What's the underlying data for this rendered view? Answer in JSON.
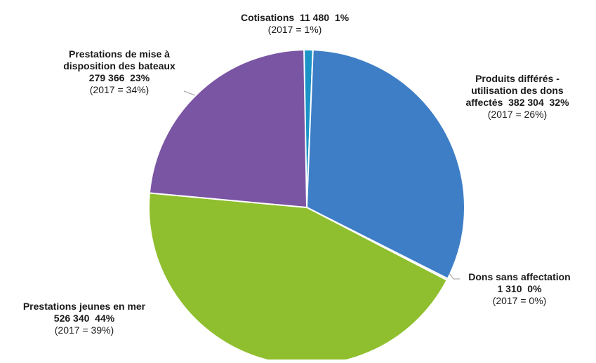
{
  "chart_data": {
    "type": "pie",
    "slices": [
      {
        "name_lines": [
          "Cotisations"
        ],
        "amount": "11 480",
        "value": 11480,
        "percent": "1%",
        "prev": "(2017 = 1%)",
        "color": "#1b93c6"
      },
      {
        "name_lines": [
          "Produits différés -",
          "utilisation des dons",
          "affectés"
        ],
        "amount": "382 304",
        "value": 382304,
        "percent": "32%",
        "prev": "(2017 = 26%)",
        "color": "#3e7ec6"
      },
      {
        "name_lines": [
          "Dons sans affectation"
        ],
        "amount": "1 310",
        "value": 1310,
        "percent": "0%",
        "prev": "(2017 = 0%)",
        "color": "#8fbf2e"
      },
      {
        "name_lines": [
          "Prestations jeunes en mer"
        ],
        "amount": "526 340",
        "value": 526340,
        "percent": "44%",
        "prev": "(2017 = 39%)",
        "color": "#8fbf2e"
      },
      {
        "name_lines": [
          "Prestations de mise à",
          "disposition des bateaux"
        ],
        "amount": "279 366",
        "value": 279366,
        "percent": "23%",
        "prev": "(2017 = 34%)",
        "color": "#7a55a3"
      }
    ]
  }
}
